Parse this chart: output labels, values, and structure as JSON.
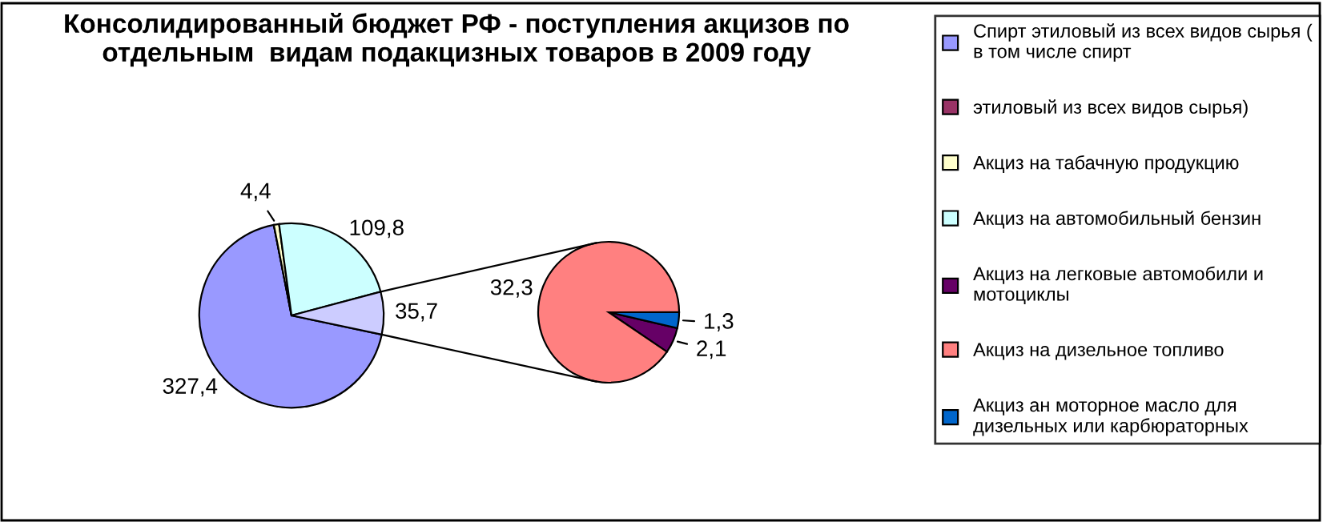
{
  "chart_data": [
    {
      "type": "pie",
      "title": "Консолидированный бюджет РФ - поступления акцизов по\nотдельным  видам подакцизных товаров в 2009 году",
      "categories": [
        "Спирт этиловый из всех видов сырья (\nв том числе спирт",
        "этиловый из всех видов сырья)",
        "Акциз на табачную продукцию",
        "Акциз на автомобильный бензин",
        null
      ],
      "values": [
        327.4,
        0,
        4.4,
        109.8,
        35.7
      ],
      "value_labels": [
        "327,4",
        null,
        "4,4",
        "109,8",
        "35,7"
      ],
      "colors": [
        "#9999ff",
        "#993366",
        "#ffffcc",
        "#ccffff",
        "#ccccff"
      ],
      "legend": "right"
    },
    {
      "type": "pie",
      "categories": [
        "Акциз на легковые автомобили и\nмотоциклы",
        "Акциз на дизельное топливо",
        "Акциз ан моторное масло для\nдизельных или карбюраторных"
      ],
      "values": [
        2.1,
        32.3,
        1.3
      ],
      "value_labels": [
        "2,1",
        "32,3",
        "1,3"
      ],
      "colors": [
        "#660066",
        "#ff8080",
        "#0066cc"
      ],
      "legend": "right"
    }
  ]
}
